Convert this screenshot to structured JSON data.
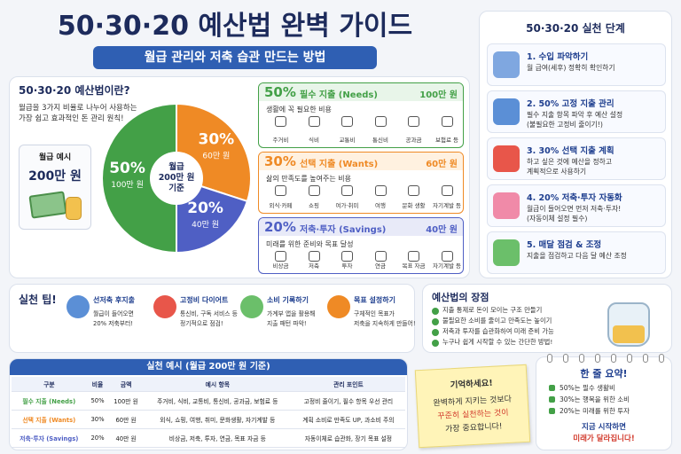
{
  "header": {
    "title": "50·30·20 예산법 완벽 가이드",
    "subtitle": "월급 관리와 저축 습관 만드는 방법"
  },
  "intro": {
    "title": "50·30·20 예산법이란?",
    "lines": [
      "월급을 3가지 비율로 나누어 사용하는",
      "가장 쉽고 효과적인 돈 관리 원칙!"
    ],
    "example_label": "월급 예시",
    "example_amount": "200만 원"
  },
  "pie": {
    "center": [
      "월급",
      "200만 원",
      "기준"
    ],
    "slices": [
      {
        "value": 50,
        "label": "50%",
        "amount": "100만 원"
      },
      {
        "value": 30,
        "label": "30%",
        "amount": "60만 원"
      },
      {
        "value": 20,
        "label": "20%",
        "amount": "40만 원"
      }
    ]
  },
  "categories": [
    {
      "percent": "50%",
      "name": "필수 지출 (Needs)",
      "amount": "100만 원",
      "desc": "생활에 꼭 필요한 비용",
      "color": "#43a047",
      "tint": "#e8f5e9",
      "items": [
        "주거비",
        "식비",
        "교통비",
        "통신비",
        "공과금",
        "보험료 등"
      ]
    },
    {
      "percent": "30%",
      "name": "선택 지출 (Wants)",
      "amount": "60만 원",
      "desc": "삶의 만족도를 높여주는 비용",
      "color": "#ef8a25",
      "tint": "#fff1e0",
      "items": [
        "외식·카페",
        "쇼핑",
        "여가·취미",
        "여행",
        "문화 생활",
        "자기계발 등"
      ]
    },
    {
      "percent": "20%",
      "name": "저축·투자 (Savings)",
      "amount": "40만 원",
      "desc": "미래를 위한 준비와 목표 달성",
      "color": "#4f5fc4",
      "tint": "#e8eaf8",
      "items": [
        "비상금",
        "저축",
        "투자",
        "연금",
        "목표 자금",
        "자기계발 등"
      ]
    }
  ],
  "steps": {
    "title": "50·30·20 실천 단계",
    "items": [
      {
        "title": "1. 수입 파악하기",
        "desc": [
          "월 급여(세후) 정확히 확인하기"
        ]
      },
      {
        "title": "2. 50% 고정 지출 관리",
        "desc": [
          "필수 지출 항목 파악 후 예산 설정",
          "(불필요한 고정비 줄이기!)"
        ]
      },
      {
        "title": "3. 30% 선택 지출 계획",
        "desc": [
          "하고 싶은 것에 예산을 정하고",
          "계획적으로 사용하기"
        ]
      },
      {
        "title": "4. 20% 저축·투자 자동화",
        "desc": [
          "월급이 들어오면 먼저 저축·투자!",
          "(자동이체 설정 필수)"
        ]
      },
      {
        "title": "5. 매달 점검 & 조정",
        "desc": [
          "지출을 점검하고 다음 달 예산 조정"
        ]
      }
    ]
  },
  "tips": {
    "title": "실천 팁!",
    "items": [
      {
        "title": "선저축 후지출",
        "desc": [
          "월급이 들어오면",
          "20% 저축부터!"
        ]
      },
      {
        "title": "고정비 다이어트",
        "desc": [
          "통신비, 구독 서비스 등",
          "정기적으로 점검!"
        ]
      },
      {
        "title": "소비 기록하기",
        "desc": [
          "가계부 앱을 활용해",
          "지출 패턴 파악!"
        ]
      },
      {
        "title": "목표 설정하기",
        "desc": [
          "구체적인 목표가",
          "저축을 지속하게 만들어!"
        ]
      }
    ]
  },
  "benefits": {
    "title": "예산법의 장점",
    "items": [
      "지출 통제로 돈이 모이는 구조 만들기",
      "불필요한 소비를 줄이고 만족도는 높이기",
      "저축과 투자를 습관화하여 미래 준비 가능",
      "누구나 쉽게 시작할 수 있는 간단한 방법!"
    ]
  },
  "table": {
    "title": "실천 예시 (월급 200만 원 기준)",
    "header": [
      "구분",
      "비율",
      "금액",
      "예시 항목",
      "관리 포인트"
    ],
    "rows": [
      [
        "필수 지출 (Needs)",
        "50%",
        "100만 원",
        "주거비, 식비, 교통비, 통신비, 공과금, 보험료 등",
        "고정비 줄이기, 필수 항목 우선 관리"
      ],
      [
        "선택 지출 (Wants)",
        "30%",
        "60만 원",
        "외식, 쇼핑, 여행, 취미, 문화생활, 자기계발 등",
        "계획 소비로 만족도 UP, 과소비 주의"
      ],
      [
        "저축·투자 (Savings)",
        "20%",
        "40만 원",
        "비상금, 저축, 투자, 연금, 목표 자금 등",
        "자동이체로 습관화, 장기 목표 설정"
      ]
    ]
  },
  "note": {
    "title": "기억하세요!",
    "lines": [
      "완벽하게 지키는 것보다",
      "꾸준히 실천하는 것이",
      "가장 중요합니다!"
    ]
  },
  "summary": {
    "title": "한 줄 요약!",
    "items": [
      "50%는 필수 생활비",
      "30%는 행복을 위한 소비",
      "20%는 미래를 위한 투자"
    ],
    "footer": [
      "지금 시작하면",
      "미래가 달라집니다!"
    ]
  }
}
